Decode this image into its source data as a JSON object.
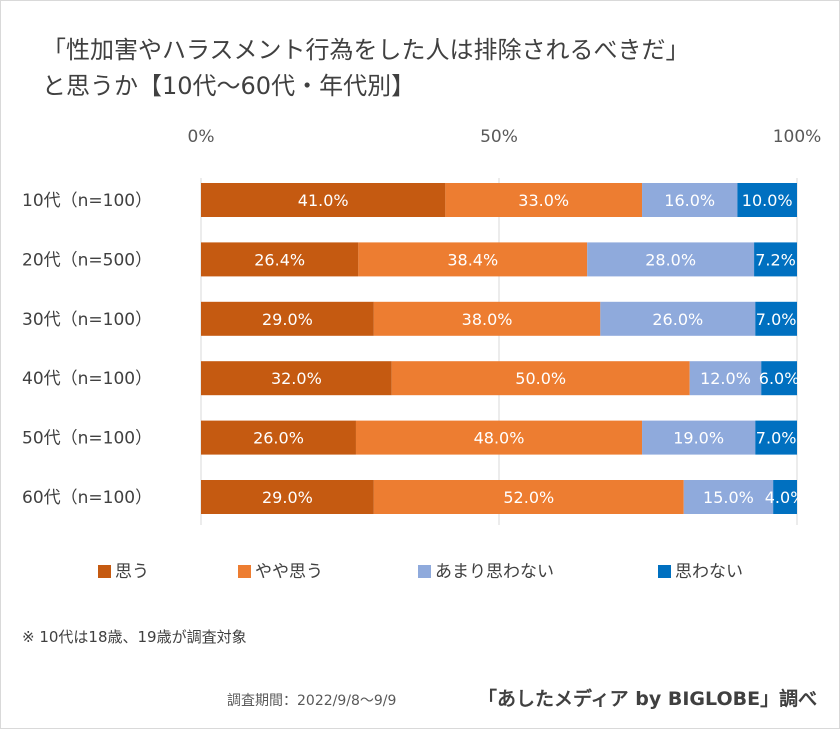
{
  "title_line1": "「性加害やハラスメント行為をした人は排除されるべきだ」",
  "title_line2": "と思うか【10代～60代・年代別】",
  "note": "※ 10代は18歳、19歳が調査対象",
  "survey_period": "調査期間：2022/9/8～9/9",
  "source": "「あしたメディア by BIGLOBE」調べ",
  "chart_data": {
    "type": "bar",
    "orientation": "horizontal",
    "stacked": true,
    "percent_stacked": true,
    "categories": [
      "10代（n=100）",
      "20代（n=500）",
      "30代（n=100）",
      "40代（n=100）",
      "50代（n=100）",
      "60代（n=100）"
    ],
    "series": [
      {
        "name": "思う",
        "color": "#c55a11",
        "values": [
          41.0,
          26.4,
          29.0,
          32.0,
          26.0,
          29.0
        ]
      },
      {
        "name": "やや思う",
        "color": "#ed7d31",
        "values": [
          33.0,
          38.4,
          38.0,
          50.0,
          48.0,
          52.0
        ]
      },
      {
        "name": "あまり思わない",
        "color": "#8faadc",
        "values": [
          16.0,
          28.0,
          26.0,
          12.0,
          19.0,
          15.0
        ]
      },
      {
        "name": "思わない",
        "color": "#0070c0",
        "values": [
          10.0,
          7.2,
          7.0,
          6.0,
          7.0,
          4.0
        ]
      }
    ],
    "x_ticks": [
      "0%",
      "50%",
      "100%"
    ],
    "xlim": [
      0,
      100
    ],
    "legend_position": "bottom",
    "gridlines": true
  }
}
